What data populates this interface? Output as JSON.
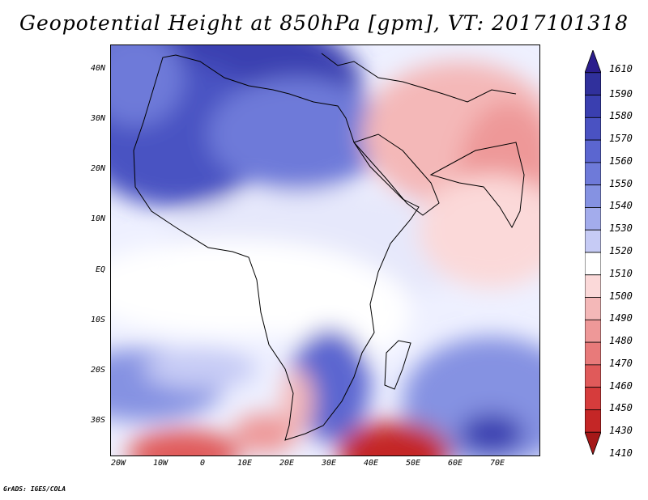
{
  "title": "Geopotential Height at 850hPa [gpm], VT: 2017101318",
  "footer": "GrADS: IGES/COLA",
  "map": {
    "y_labels": [
      "40N",
      "30N",
      "20N",
      "10N",
      "EQ",
      "10S",
      "20S",
      "30S"
    ],
    "x_labels": [
      "20W",
      "10W",
      "0",
      "10E",
      "20E",
      "30E",
      "40E",
      "50E",
      "60E",
      "70E"
    ]
  },
  "colorbar": {
    "labels": [
      "1610",
      "1590",
      "1580",
      "1570",
      "1560",
      "1550",
      "1540",
      "1530",
      "1520",
      "1510",
      "1500",
      "1490",
      "1480",
      "1470",
      "1460",
      "1450",
      "1430",
      "1410"
    ],
    "colors": [
      "#2b1d8c",
      "#30309c",
      "#3a3fb0",
      "#4a52c2",
      "#5b66d0",
      "#6e7ad9",
      "#8592e2",
      "#a3acec",
      "#c6cbf5",
      "#ffffff",
      "#fbd9d9",
      "#f4b8b8",
      "#ee9898",
      "#e87a7a",
      "#e05a5a",
      "#d63c3c",
      "#c42626",
      "#a51818"
    ]
  }
}
